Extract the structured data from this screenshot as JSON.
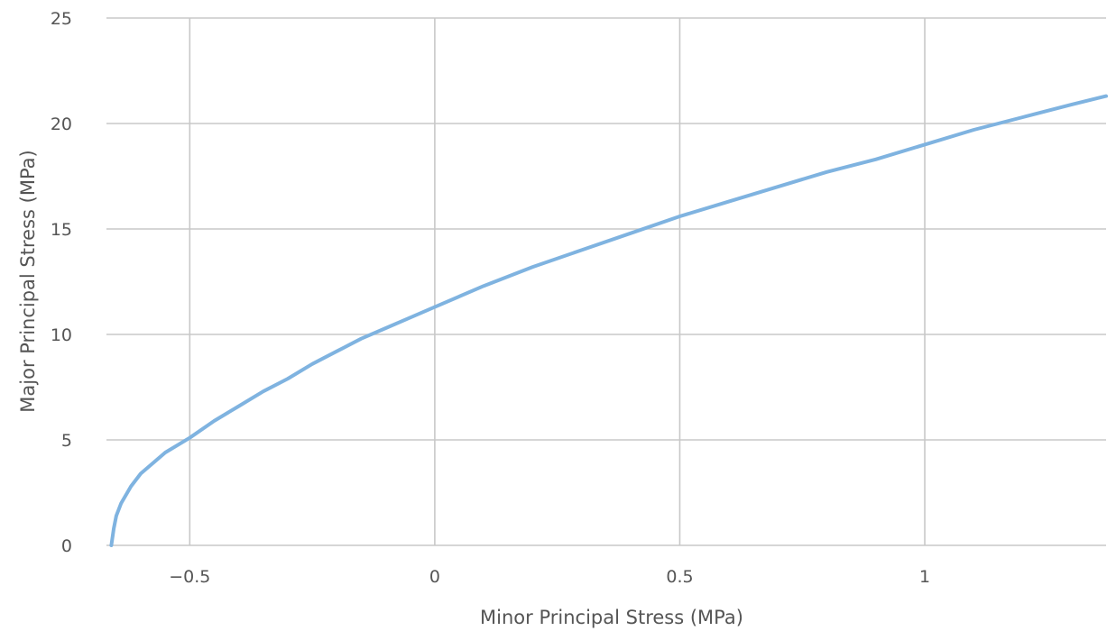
{
  "chart_data": {
    "type": "line",
    "xlabel": "Minor Principal Stress (MPa)",
    "ylabel": "Major Principal Stress (MPa)",
    "xlim": [
      -0.67,
      1.37
    ],
    "ylim": [
      0,
      25
    ],
    "x_ticks": [
      -0.5,
      0,
      0.5,
      1
    ],
    "x_tick_labels": [
      "−0.5",
      "0",
      "0.5",
      "1"
    ],
    "y_ticks": [
      0,
      5,
      10,
      15,
      20,
      25
    ],
    "y_tick_labels": [
      "0",
      "5",
      "10",
      "15",
      "20",
      "25"
    ],
    "grid": true,
    "legend": "none",
    "series": [
      {
        "color": "#7fb3e0",
        "x": [
          -0.66,
          -0.655,
          -0.65,
          -0.64,
          -0.62,
          -0.6,
          -0.55,
          -0.5,
          -0.45,
          -0.4,
          -0.35,
          -0.3,
          -0.25,
          -0.2,
          -0.15,
          -0.1,
          -0.05,
          0,
          0.1,
          0.2,
          0.3,
          0.4,
          0.5,
          0.6,
          0.7,
          0.8,
          0.9,
          1.0,
          1.1,
          1.2,
          1.3,
          1.37
        ],
        "y": [
          0,
          0.8,
          1.4,
          2.0,
          2.8,
          3.4,
          4.4,
          5.1,
          5.9,
          6.6,
          7.3,
          7.9,
          8.6,
          9.2,
          9.8,
          10.3,
          10.8,
          11.3,
          12.3,
          13.2,
          14.0,
          14.8,
          15.6,
          16.3,
          17.0,
          17.7,
          18.3,
          19.0,
          19.7,
          20.3,
          20.9,
          21.3
        ]
      }
    ]
  }
}
